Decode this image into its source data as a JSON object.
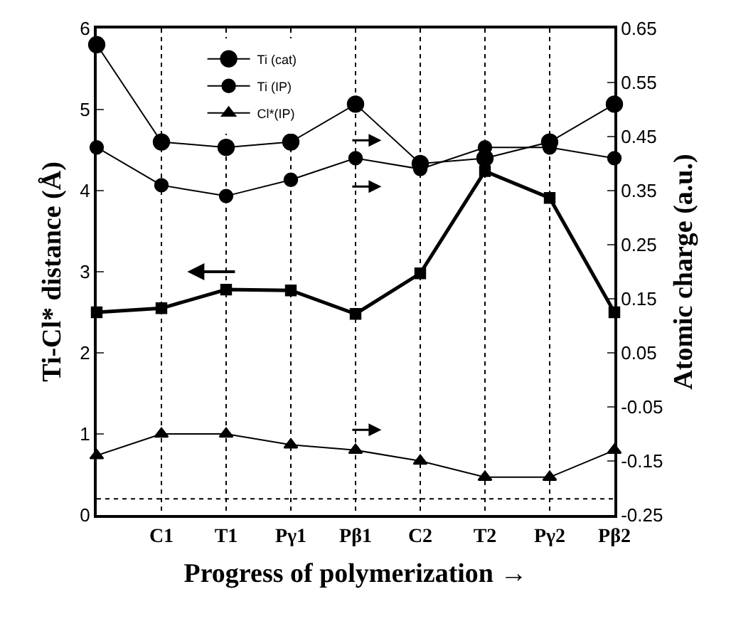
{
  "chart_data": {
    "type": "line",
    "xlabel": "Progress of polymerization →",
    "ylabel": "Ti-Cl* distance (Å)",
    "y2label": "Atomic charge (a.u.)",
    "categories": [
      null,
      "C1",
      "T1",
      "Pγ1",
      "Pβ1",
      "C2",
      "T2",
      "Pγ2",
      "Pβ2"
    ],
    "series": [
      {
        "color": "#000000",
        "axis": "y",
        "marker": "square",
        "values": [
          2.5,
          2.55,
          2.78,
          2.77,
          2.48,
          2.98,
          4.24,
          3.91,
          2.5
        ]
      },
      {
        "name": "Ti (cat)",
        "color": "#000000",
        "axis": "y2",
        "marker": "circle",
        "values": [
          0.62,
          0.44,
          0.43,
          0.44,
          0.51,
          0.4,
          0.41,
          0.44,
          0.51
        ]
      },
      {
        "name": "Ti (IP)",
        "color": "#000000",
        "axis": "y2",
        "marker": "circle",
        "values": [
          0.43,
          0.36,
          0.34,
          0.37,
          0.41,
          0.39,
          0.43,
          0.43,
          0.41
        ]
      },
      {
        "name": "Cl*(IP)",
        "color": "#000000",
        "axis": "y2",
        "marker": "triangle",
        "values": [
          -0.14,
          -0.1,
          -0.1,
          -0.12,
          -0.13,
          -0.15,
          -0.18,
          -0.18,
          -0.13
        ]
      }
    ],
    "ylim": [
      0,
      6
    ],
    "yticks": [
      0,
      1,
      2,
      3,
      4,
      5,
      6
    ],
    "y2lim": [
      -0.25,
      0.65
    ],
    "y2ticks": [
      -0.25,
      -0.15,
      -0.05,
      0.05,
      0.15,
      0.25,
      0.35,
      0.45,
      0.55,
      0.65
    ],
    "ref_lines": [
      {
        "axis": "y",
        "value": 0.2,
        "line_style": "dotted",
        "color": "#000000"
      }
    ],
    "grid": "x",
    "legend": "top left",
    "line_style": "solid"
  }
}
